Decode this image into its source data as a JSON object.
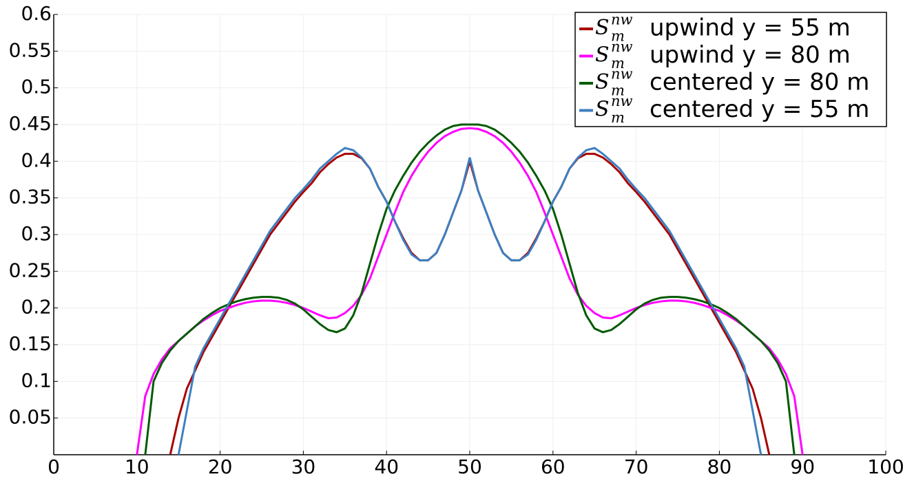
{
  "chart_data": {
    "type": "line",
    "legend_symbol": {
      "base": "S",
      "sup": "nw",
      "sub": "m"
    },
    "x": [
      10,
      11,
      12,
      13,
      14,
      15,
      16,
      17,
      18,
      19,
      20,
      21,
      22,
      23,
      24,
      25,
      26,
      27,
      28,
      29,
      30,
      31,
      32,
      33,
      34,
      35,
      36,
      37,
      38,
      39,
      40,
      41,
      42,
      43,
      44,
      45,
      46,
      47,
      48,
      49,
      50,
      51,
      52,
      53,
      54,
      55,
      56,
      57,
      58,
      59,
      60,
      61,
      62,
      63,
      64,
      65,
      66,
      67,
      68,
      69,
      70,
      71,
      72,
      73,
      74,
      75,
      76,
      77,
      78,
      79,
      80,
      81,
      82,
      83,
      84,
      85,
      86,
      87,
      88,
      89,
      90
    ],
    "series": [
      {
        "name": "upwind y = 55 m",
        "color": "#a80000",
        "values": [
          null,
          null,
          null,
          null,
          0,
          0.05,
          0.09,
          0.115,
          0.14,
          0.16,
          0.18,
          0.2,
          0.22,
          0.24,
          0.26,
          0.28,
          0.3,
          0.315,
          0.33,
          0.345,
          0.358,
          0.37,
          0.385,
          0.396,
          0.405,
          0.41,
          0.41,
          0.404,
          0.39,
          0.365,
          0.345,
          0.318,
          0.295,
          0.275,
          0.265,
          0.265,
          0.275,
          0.3,
          0.33,
          0.36,
          0.4,
          0.36,
          0.33,
          0.3,
          0.275,
          0.265,
          0.265,
          0.275,
          0.295,
          0.318,
          0.345,
          0.365,
          0.39,
          0.404,
          0.41,
          0.41,
          0.405,
          0.396,
          0.385,
          0.37,
          0.358,
          0.345,
          0.33,
          0.315,
          0.3,
          0.28,
          0.26,
          0.24,
          0.22,
          0.2,
          0.18,
          0.16,
          0.14,
          0.115,
          0.09,
          0.05,
          0,
          null,
          null,
          null,
          null
        ]
      },
      {
        "name": "upwind y = 80 m",
        "color": "#ff00ff",
        "values": [
          0,
          0.08,
          0.11,
          0.13,
          0.145,
          0.155,
          0.165,
          0.175,
          0.183,
          0.19,
          0.196,
          0.2,
          0.204,
          0.207,
          0.209,
          0.21,
          0.21,
          0.209,
          0.207,
          0.204,
          0.2,
          0.195,
          0.19,
          0.186,
          0.187,
          0.193,
          0.203,
          0.218,
          0.24,
          0.27,
          0.3,
          0.33,
          0.358,
          0.38,
          0.398,
          0.413,
          0.425,
          0.434,
          0.44,
          0.444,
          0.445,
          0.444,
          0.44,
          0.434,
          0.425,
          0.413,
          0.398,
          0.38,
          0.358,
          0.33,
          0.3,
          0.27,
          0.24,
          0.218,
          0.203,
          0.193,
          0.187,
          0.186,
          0.19,
          0.195,
          0.2,
          0.204,
          0.207,
          0.209,
          0.21,
          0.21,
          0.209,
          0.207,
          0.204,
          0.2,
          0.196,
          0.19,
          0.183,
          0.175,
          0.165,
          0.155,
          0.145,
          0.13,
          0.11,
          0.08,
          0
        ]
      },
      {
        "name": "centered y = 80 m",
        "color": "#005a00",
        "values": [
          null,
          0,
          0.1,
          0.125,
          0.142,
          0.155,
          0.165,
          0.175,
          0.185,
          0.193,
          0.2,
          0.205,
          0.209,
          0.212,
          0.214,
          0.215,
          0.215,
          0.214,
          0.211,
          0.206,
          0.198,
          0.188,
          0.178,
          0.17,
          0.167,
          0.172,
          0.19,
          0.22,
          0.26,
          0.3,
          0.335,
          0.36,
          0.38,
          0.398,
          0.413,
          0.425,
          0.435,
          0.443,
          0.448,
          0.45,
          0.45,
          0.45,
          0.448,
          0.443,
          0.435,
          0.425,
          0.413,
          0.398,
          0.38,
          0.36,
          0.335,
          0.3,
          0.26,
          0.22,
          0.19,
          0.172,
          0.167,
          0.17,
          0.178,
          0.188,
          0.198,
          0.206,
          0.211,
          0.214,
          0.215,
          0.215,
          0.214,
          0.212,
          0.209,
          0.205,
          0.2,
          0.193,
          0.185,
          0.175,
          0.165,
          0.155,
          0.142,
          0.125,
          0.1,
          0,
          null
        ]
      },
      {
        "name": "centered y = 55 m",
        "color": "#3d7fc1",
        "values": [
          null,
          null,
          null,
          null,
          null,
          0,
          0.06,
          0.12,
          0.145,
          0.165,
          0.185,
          0.205,
          0.225,
          0.245,
          0.265,
          0.285,
          0.305,
          0.32,
          0.335,
          0.35,
          0.362,
          0.375,
          0.39,
          0.4,
          0.41,
          0.418,
          0.415,
          0.405,
          0.39,
          0.365,
          0.345,
          0.318,
          0.293,
          0.273,
          0.265,
          0.265,
          0.275,
          0.3,
          0.33,
          0.36,
          0.405,
          0.36,
          0.33,
          0.3,
          0.275,
          0.265,
          0.265,
          0.273,
          0.293,
          0.318,
          0.345,
          0.365,
          0.39,
          0.405,
          0.415,
          0.418,
          0.41,
          0.4,
          0.39,
          0.375,
          0.362,
          0.35,
          0.335,
          0.32,
          0.305,
          0.285,
          0.265,
          0.245,
          0.225,
          0.205,
          0.185,
          0.165,
          0.145,
          0.12,
          0.06,
          0,
          null,
          null,
          null,
          null,
          null
        ]
      }
    ],
    "xlim": [
      0,
      100
    ],
    "xticks": [
      0,
      10,
      20,
      30,
      40,
      50,
      60,
      70,
      80,
      90,
      100
    ],
    "ylim": [
      0,
      0.6
    ],
    "yticks": [
      0.05,
      0.1,
      0.15,
      0.2,
      0.25,
      0.3,
      0.35,
      0.4,
      0.45,
      0.5,
      0.55,
      0.6
    ],
    "grid": true,
    "legend_position": "upper right"
  }
}
